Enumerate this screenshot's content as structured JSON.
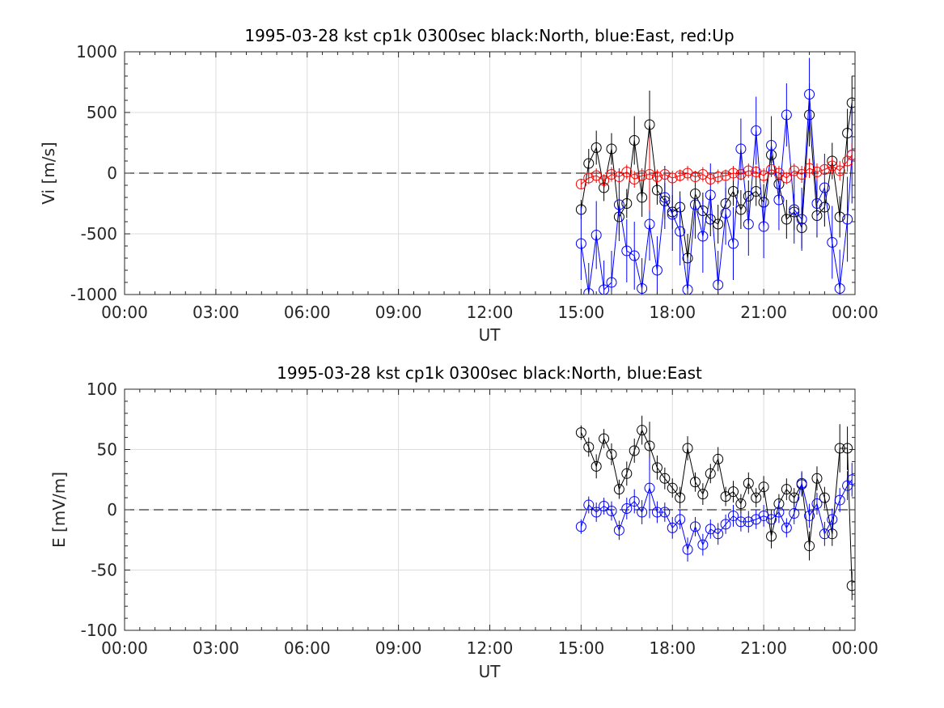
{
  "colors": {
    "north": "#000000",
    "east": "#0000ff",
    "up": "#ff0000",
    "grid": "#dcdcdc",
    "axis": "#262626",
    "zero_line": "#000000"
  },
  "chart_data": [
    {
      "type": "scatter",
      "title": "1995-03-28 kst cp1k 0300sec black:North, blue:East, red:Up",
      "xlabel": "UT",
      "ylabel": "Vi [m/s]",
      "xlim": [
        0,
        24
      ],
      "ylim": [
        -1000,
        1000
      ],
      "x_tick_values": [
        0,
        3,
        6,
        9,
        12,
        15,
        18,
        21,
        24
      ],
      "x_tick_labels": [
        "00:00",
        "03:00",
        "06:00",
        "09:00",
        "12:00",
        "15:00",
        "18:00",
        "21:00",
        "00:00"
      ],
      "y_tick_values": [
        1000,
        500,
        0,
        -500,
        -1000
      ],
      "y_tick_labels": [
        "1000",
        "500",
        "0",
        "-500",
        "-1000"
      ],
      "grid": true,
      "zero_line": true,
      "markers": "open-circle-with-error-bars",
      "series": [
        {
          "name": "North",
          "color": "#000000",
          "x": [
            15.0,
            15.25,
            15.5,
            15.75,
            16.0,
            16.25,
            16.5,
            16.75,
            17.0,
            17.25,
            17.5,
            17.75,
            18.0,
            18.25,
            18.5,
            18.75,
            19.0,
            19.25,
            19.5,
            19.75,
            20.0,
            20.25,
            20.5,
            20.75,
            21.0,
            21.25,
            21.5,
            21.75,
            22.0,
            22.25,
            22.5,
            22.75,
            23.0,
            23.25,
            23.5,
            23.75,
            23.9
          ],
          "y": [
            -300,
            80,
            210,
            -120,
            200,
            -360,
            -250,
            270,
            -200,
            400,
            -140,
            -230,
            -320,
            -280,
            -700,
            -170,
            -310,
            -380,
            -420,
            -250,
            -150,
            -300,
            -190,
            -150,
            -240,
            150,
            -90,
            -380,
            -320,
            -450,
            480,
            -350,
            -280,
            100,
            -360,
            330,
            580
          ],
          "err": [
            80,
            120,
            140,
            110,
            130,
            150,
            120,
            200,
            160,
            280,
            120,
            150,
            140,
            130,
            200,
            120,
            150,
            140,
            160,
            130,
            120,
            160,
            130,
            120,
            150,
            180,
            120,
            160,
            150,
            170,
            260,
            180,
            160,
            150,
            170,
            200,
            220
          ]
        },
        {
          "name": "East",
          "color": "#0000ff",
          "x": [
            15.0,
            15.25,
            15.5,
            15.75,
            16.0,
            16.25,
            16.5,
            16.75,
            17.0,
            17.25,
            17.5,
            17.75,
            18.0,
            18.25,
            18.5,
            18.75,
            19.0,
            19.25,
            19.5,
            19.75,
            20.0,
            20.25,
            20.5,
            20.75,
            21.0,
            21.25,
            21.5,
            21.75,
            22.0,
            22.25,
            22.5,
            22.75,
            23.0,
            23.25,
            23.5,
            23.75,
            23.9
          ],
          "y": [
            -580,
            -990,
            -510,
            -960,
            -900,
            -260,
            -640,
            -680,
            -950,
            -420,
            -800,
            -200,
            -340,
            -480,
            -960,
            -260,
            -520,
            -180,
            -920,
            -330,
            -580,
            200,
            -420,
            350,
            -440,
            230,
            -220,
            480,
            -300,
            -380,
            650,
            -250,
            -120,
            -570,
            -950,
            -380,
            150
          ],
          "err": [
            300,
            250,
            280,
            240,
            260,
            300,
            260,
            280,
            250,
            300,
            280,
            260,
            300,
            280,
            260,
            280,
            300,
            260,
            280,
            260,
            300,
            250,
            260,
            280,
            260,
            240,
            250,
            260,
            280,
            260,
            300,
            260,
            280,
            300,
            320,
            350,
            400
          ]
        },
        {
          "name": "Up",
          "color": "#ff0000",
          "x": [
            15.0,
            15.25,
            15.5,
            15.75,
            16.0,
            16.25,
            16.5,
            16.75,
            17.0,
            17.25,
            17.5,
            17.75,
            18.0,
            18.25,
            18.5,
            18.75,
            19.0,
            19.25,
            19.5,
            19.75,
            20.0,
            20.25,
            20.5,
            20.75,
            21.0,
            21.25,
            21.5,
            21.75,
            22.0,
            22.25,
            22.5,
            22.75,
            23.0,
            23.25,
            23.5,
            23.75,
            23.9
          ],
          "y": [
            -90,
            -40,
            -20,
            -60,
            -10,
            -30,
            10,
            -50,
            -20,
            -10,
            -30,
            -10,
            -40,
            -20,
            0,
            -30,
            -10,
            -50,
            -30,
            -20,
            0,
            -10,
            20,
            10,
            -20,
            30,
            0,
            -40,
            20,
            -10,
            40,
            10,
            30,
            60,
            20,
            100,
            150
          ],
          "err": [
            40,
            50,
            60,
            50,
            60,
            50,
            60,
            70,
            60,
            300,
            60,
            50,
            60,
            50,
            60,
            50,
            60,
            50,
            60,
            50,
            60,
            50,
            60,
            50,
            60,
            50,
            60,
            50,
            60,
            70,
            80,
            70,
            80,
            70,
            80,
            90,
            100
          ]
        }
      ]
    },
    {
      "type": "scatter",
      "title": "1995-03-28 kst cp1k 0300sec black:North, blue:East",
      "xlabel": "UT",
      "ylabel": "E [mV/m]",
      "xlim": [
        0,
        24
      ],
      "ylim": [
        -100,
        100
      ],
      "x_tick_values": [
        0,
        3,
        6,
        9,
        12,
        15,
        18,
        21,
        24
      ],
      "x_tick_labels": [
        "00:00",
        "03:00",
        "06:00",
        "09:00",
        "12:00",
        "15:00",
        "18:00",
        "21:00",
        "00:00"
      ],
      "y_tick_values": [
        100,
        50,
        0,
        -50,
        -100
      ],
      "y_tick_labels": [
        "100",
        "50",
        "0",
        "-50",
        "-100"
      ],
      "grid": true,
      "zero_line": true,
      "markers": "open-circle-with-error-bars",
      "series": [
        {
          "name": "North",
          "color": "#000000",
          "x": [
            15.0,
            15.25,
            15.5,
            15.75,
            16.0,
            16.25,
            16.5,
            16.75,
            17.0,
            17.25,
            17.5,
            17.75,
            18.0,
            18.25,
            18.5,
            18.75,
            19.0,
            19.25,
            19.5,
            19.75,
            20.0,
            20.25,
            20.5,
            20.75,
            21.0,
            21.25,
            21.5,
            21.75,
            22.0,
            22.25,
            22.5,
            22.75,
            23.0,
            23.25,
            23.5,
            23.75,
            23.9
          ],
          "y": [
            64,
            52,
            36,
            59,
            46,
            17,
            30,
            49,
            66,
            53,
            35,
            26,
            18,
            10,
            51,
            23,
            13,
            30,
            42,
            11,
            15,
            5,
            22,
            10,
            19,
            -22,
            5,
            17,
            10,
            21,
            -30,
            26,
            10,
            -20,
            51,
            51,
            -63
          ],
          "err": [
            6,
            8,
            10,
            8,
            9,
            8,
            10,
            10,
            12,
            20,
            10,
            9,
            8,
            9,
            10,
            8,
            9,
            8,
            10,
            8,
            9,
            8,
            9,
            8,
            9,
            10,
            8,
            9,
            8,
            10,
            12,
            10,
            9,
            10,
            20,
            18,
            12
          ]
        },
        {
          "name": "East",
          "color": "#0000ff",
          "x": [
            15.0,
            15.25,
            15.5,
            15.75,
            16.0,
            16.25,
            16.5,
            16.75,
            17.0,
            17.25,
            17.5,
            17.75,
            18.0,
            18.25,
            18.5,
            18.75,
            19.0,
            19.25,
            19.5,
            19.75,
            20.0,
            20.25,
            20.5,
            20.75,
            21.0,
            21.25,
            21.5,
            21.75,
            22.0,
            22.25,
            22.5,
            22.75,
            23.0,
            23.25,
            23.5,
            23.75,
            23.9
          ],
          "y": [
            -14,
            4,
            -2,
            3,
            -1,
            -17,
            1,
            7,
            -2,
            18,
            -2,
            -2,
            -15,
            -8,
            -33,
            -14,
            -29,
            -16,
            -20,
            -12,
            -5,
            -10,
            -10,
            -8,
            -5,
            -8,
            -2,
            -15,
            -3,
            22,
            -5,
            5,
            -20,
            -8,
            8,
            20,
            25
          ],
          "err": [
            6,
            7,
            8,
            7,
            8,
            8,
            9,
            10,
            10,
            25,
            9,
            8,
            9,
            8,
            10,
            8,
            9,
            8,
            9,
            8,
            9,
            8,
            9,
            8,
            9,
            8,
            9,
            8,
            9,
            10,
            10,
            9,
            10,
            9,
            10,
            12,
            14
          ]
        }
      ]
    }
  ]
}
